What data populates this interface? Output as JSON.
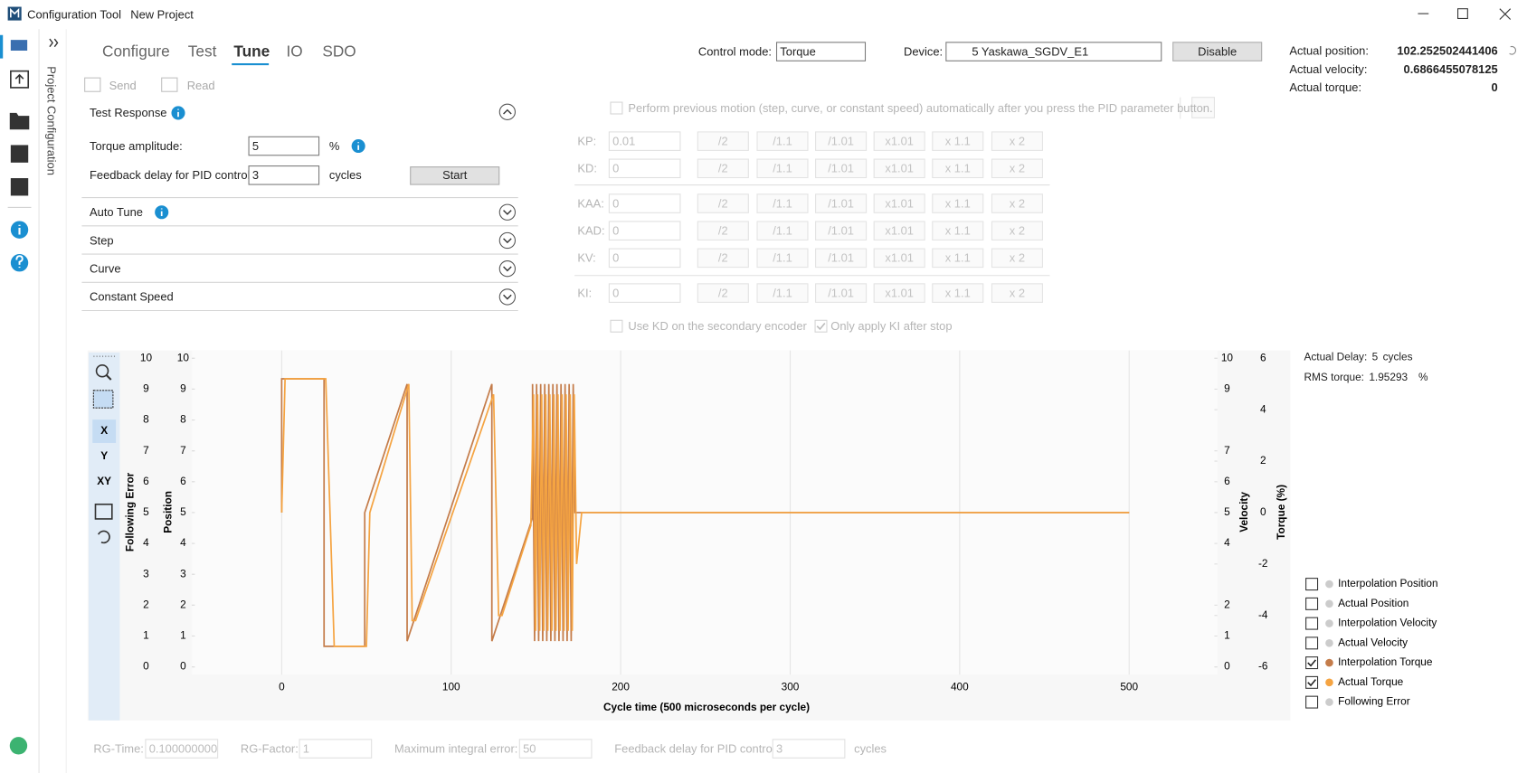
{
  "window": {
    "app": "Configuration Tool",
    "project": "New Project"
  },
  "sidebar": {
    "label": "Project Configuration"
  },
  "tabs": [
    "Configure",
    "Test",
    "Tune",
    "IO",
    "SDO"
  ],
  "active_tab": 2,
  "toolbar": {
    "send": "Send",
    "read": "Read"
  },
  "control_mode": {
    "label": "Control mode:",
    "value": "Torque"
  },
  "device": {
    "label": "Device:",
    "value": "5  Yaskawa_SGDV_E1"
  },
  "disable_button": "Disable",
  "status": [
    {
      "label": "Actual position:",
      "value": "102.252502441406"
    },
    {
      "label": "Actual velocity:",
      "value": "0.6866455078125"
    },
    {
      "label": "Actual torque:",
      "value": "0"
    }
  ],
  "test_response": {
    "title": "Test Response",
    "fields": [
      {
        "label": "Torque amplitude:",
        "value": "5",
        "unit": "%"
      },
      {
        "label": "Feedback delay for PID control:",
        "value": "3",
        "unit": "cycles"
      }
    ],
    "start": "Start"
  },
  "sections": [
    "Auto Tune",
    "Step",
    "Curve",
    "Constant Speed"
  ],
  "perform_text": "Perform previous motion (step, curve, or constant speed) automatically after you press the PID parameter button.",
  "pid": {
    "buttons": [
      "/2",
      "/1.1",
      "/1.01",
      "x1.01",
      "x 1.1",
      "x 2"
    ],
    "rows": [
      {
        "label": "KP:",
        "value": "0.01"
      },
      {
        "label": "KD:",
        "value": "0"
      },
      {
        "label": "KAA:",
        "value": "0"
      },
      {
        "label": "KAD:",
        "value": "0"
      },
      {
        "label": "KV:",
        "value": "0"
      },
      {
        "label": "KI:",
        "value": "0"
      }
    ]
  },
  "options": [
    {
      "label": "Use KD on the secondary encoder",
      "checked": false
    },
    {
      "label": "Only apply KI after stop",
      "checked": true
    }
  ],
  "chart_toolbar": [
    "X",
    "Y",
    "XY"
  ],
  "chart_info": [
    {
      "label": "Actual Delay:",
      "value": "5",
      "unit": "cycles"
    },
    {
      "label": "RMS torque:",
      "value": "1.95293",
      "unit": "%"
    }
  ],
  "chart_data": {
    "type": "line",
    "xlabel": "Cycle time (500 microseconds per cycle)",
    "xlim": [
      -53,
      552
    ],
    "xticks": [
      0,
      100,
      200,
      300,
      400,
      500
    ],
    "grid": true,
    "y_axes": [
      {
        "label": "Following Error",
        "ylim": [
          0,
          10
        ],
        "yticks": [
          0,
          1,
          2,
          3,
          4,
          5,
          6,
          7,
          8,
          9,
          10
        ]
      },
      {
        "label": "Position",
        "ylim": [
          0,
          10
        ],
        "yticks": [
          0,
          1,
          2,
          3,
          4,
          5,
          6,
          7,
          8,
          9,
          10
        ]
      },
      {
        "label": "Velocity",
        "ylim": [
          0,
          10
        ],
        "yticks": [
          0,
          1,
          2,
          4,
          5,
          6,
          7,
          9,
          10
        ]
      },
      {
        "label": "Torque (%)",
        "ylim": [
          -6,
          6
        ],
        "yticks": [
          -6,
          -4,
          -2,
          0,
          2,
          4,
          6
        ]
      }
    ],
    "series": [
      {
        "name": "Interpolation Position",
        "color": "#cccccc",
        "checked": false
      },
      {
        "name": "Actual Position",
        "color": "#cccccc",
        "checked": false
      },
      {
        "name": "Interpolation Velocity",
        "color": "#cccccc",
        "checked": false
      },
      {
        "name": "Actual Velocity",
        "color": "#cccccc",
        "checked": false
      },
      {
        "name": "Interpolation Torque",
        "color": "#c47c4a",
        "checked": true,
        "axis": 3,
        "x": [
          0,
          0,
          25,
          25,
          49,
          49,
          74,
          74,
          124,
          124,
          148,
          148,
          149.2,
          150.4,
          151.6,
          152.8,
          154,
          155.2,
          156.4,
          157.6,
          158.8,
          160,
          161.2,
          162.4,
          163.6,
          164.8,
          166,
          167.2,
          168.4,
          169.6,
          170.8,
          172,
          173,
          500
        ],
        "values": [
          0,
          5.2,
          5.2,
          -5.2,
          -5.2,
          0,
          5,
          -5,
          5,
          -5,
          -0.2,
          5,
          -5,
          5,
          -5,
          5,
          -5,
          5,
          -5,
          5,
          -5,
          5,
          -5,
          5,
          -5,
          5,
          -5,
          5,
          -5,
          5,
          -5,
          5,
          0,
          0
        ]
      },
      {
        "name": "Actual Torque",
        "color": "#f5a442",
        "checked": true,
        "axis": 3,
        "x": [
          0,
          2,
          26,
          31,
          50,
          52,
          75,
          77,
          79,
          125,
          128,
          130,
          147,
          148.6,
          149.8,
          151,
          152.2,
          153.4,
          154.6,
          155.8,
          157,
          158.2,
          159.4,
          160.6,
          161.8,
          163,
          164.2,
          165.4,
          166.6,
          167.8,
          169,
          170.2,
          171.4,
          172.6,
          174,
          177,
          500
        ],
        "values": [
          0,
          5.2,
          5.2,
          -5.2,
          -5.2,
          0,
          5,
          -4.2,
          -4.2,
          4.6,
          -4,
          -4,
          -0.5,
          4.6,
          -4.6,
          4.6,
          -4.6,
          4.6,
          -4.6,
          4.6,
          -4.6,
          4.6,
          -4.6,
          4.6,
          -4.6,
          4.6,
          -4.6,
          4.6,
          -4.6,
          4.6,
          -4.6,
          4.6,
          -4.6,
          4.6,
          -2,
          0,
          0
        ]
      },
      {
        "name": "Following Error",
        "color": "#cccccc",
        "checked": false
      }
    ]
  },
  "bottom": [
    {
      "label": "RG-Time:",
      "value": "0.1000000000"
    },
    {
      "label": "RG-Factor:",
      "value": "1"
    },
    {
      "label": "Maximum integral error:",
      "value": "50"
    },
    {
      "label": "Feedback delay for PID control:",
      "value": "3",
      "unit": "cycles"
    }
  ]
}
